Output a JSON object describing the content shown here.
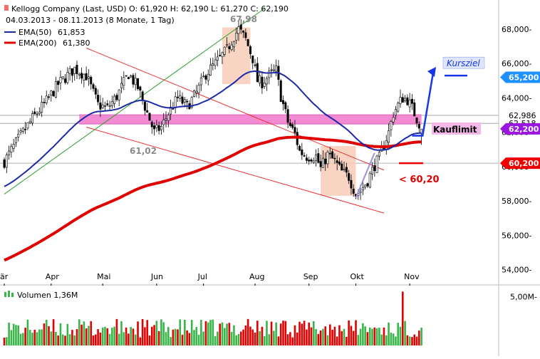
{
  "chart_data": {
    "type": "candlestick",
    "header": {
      "line1": "Kellogg Company (Last, USD)  O: 61,920  H: 62,190  L: 61,270  C: 62,190",
      "line2": "04.03.2013 - 08.11.2013 (8 Monate, 1 Tag)"
    },
    "legend": [
      {
        "name": "EMA(50)",
        "value": "61,853",
        "color": "#1c2aa8"
      },
      {
        "name": "EMA(200)",
        "value": "61,380",
        "color": "#e00000"
      }
    ],
    "price_axis": {
      "ylim": [
        53.2,
        69.2
      ],
      "ticks": [
        {
          "value": 54,
          "label": "54,000-"
        },
        {
          "value": 56,
          "label": "56,000-"
        },
        {
          "value": 58,
          "label": "58,000-"
        },
        {
          "value": 60,
          "label": "60,000-"
        },
        {
          "value": 62,
          "label": "62,000-"
        },
        {
          "value": 64,
          "label": "64,000-"
        },
        {
          "value": 66,
          "label": "66,000-"
        },
        {
          "value": 68,
          "label": "68,000-"
        }
      ],
      "extra_labels": [
        {
          "value": 62.986,
          "label": "62,986"
        },
        {
          "value": 62.518,
          "label": "62,518"
        }
      ]
    },
    "months": [
      {
        "label": "är",
        "day": 0
      },
      {
        "label": "Apr",
        "day": 20
      },
      {
        "label": "Mai",
        "day": 42
      },
      {
        "label": "Jun",
        "day": 65
      },
      {
        "label": "Jul",
        "day": 85
      },
      {
        "label": "Aug",
        "day": 107
      },
      {
        "label": "Sep",
        "day": 130
      },
      {
        "label": "Okt",
        "day": 150
      },
      {
        "label": "Nov",
        "day": 173
      }
    ],
    "price_keypoints": [
      [
        0,
        60.3
      ],
      [
        6,
        61.6
      ],
      [
        12,
        62.8
      ],
      [
        18,
        63.8
      ],
      [
        23,
        64.8
      ],
      [
        30,
        65.7
      ],
      [
        35,
        65.3
      ],
      [
        40,
        63.6
      ],
      [
        44,
        63.4
      ],
      [
        48,
        64.1
      ],
      [
        53,
        65.4
      ],
      [
        57,
        64.6
      ],
      [
        60,
        63.5
      ],
      [
        64,
        62.0
      ],
      [
        67,
        62.3
      ],
      [
        70,
        63.1
      ],
      [
        74,
        64.0
      ],
      [
        78,
        63.5
      ],
      [
        82,
        64.3
      ],
      [
        86,
        65.4
      ],
      [
        90,
        66.0
      ],
      [
        95,
        66.8
      ],
      [
        98,
        67.6
      ],
      [
        100,
        68.0
      ],
      [
        103,
        67.4
      ],
      [
        106,
        66.3
      ],
      [
        108,
        65.0
      ],
      [
        110,
        64.9
      ],
      [
        113,
        65.3
      ],
      [
        116,
        65.6
      ],
      [
        118,
        64.1
      ],
      [
        121,
        62.6
      ],
      [
        124,
        61.9
      ],
      [
        126,
        60.9
      ],
      [
        129,
        60.6
      ],
      [
        133,
        60.6
      ],
      [
        135,
        59.9
      ],
      [
        138,
        60.7
      ],
      [
        141,
        60.3
      ],
      [
        144,
        59.7
      ],
      [
        147,
        59.4
      ],
      [
        150,
        58.4
      ],
      [
        152,
        58.6
      ],
      [
        155,
        59.2
      ],
      [
        158,
        60.1
      ],
      [
        160,
        60.5
      ],
      [
        162,
        61.3
      ],
      [
        164,
        62.0
      ],
      [
        166,
        63.1
      ],
      [
        168,
        63.6
      ],
      [
        170,
        64.0
      ],
      [
        172,
        63.9
      ],
      [
        174,
        63.4
      ],
      [
        176,
        62.8
      ],
      [
        178,
        62.2
      ]
    ],
    "volume_axis": {
      "ylim": [
        0,
        5.6
      ],
      "ticks": [
        {
          "value": 5,
          "label": "5,00M-"
        }
      ]
    },
    "volume_label": "Volumen 1,36M",
    "annotations": {
      "high_label": "67,98",
      "low_label": "61,02",
      "kursziel": "Kursziel",
      "kursziel_badge": "65,200",
      "kauflimit": "Kauflimit",
      "kauflimit_badge": "62,200",
      "stop": "< 60,20",
      "stop_badge": "60,200"
    },
    "colors": {
      "up": "#39b54a",
      "down": "#e20000",
      "wick": "#000000",
      "ema50": "#1c2aa8",
      "ema200": "#e00000",
      "support_zone": "#f06ec8",
      "highlight_zone": "#f9c9b4",
      "trend_red": "#e83030",
      "trend_green": "#2e9e2e",
      "arrow": "#1636e8",
      "kursziel_badge": "#1e90ff",
      "kauflimit_badge": "#9b16e0",
      "stop_badge": "#f00000"
    }
  }
}
